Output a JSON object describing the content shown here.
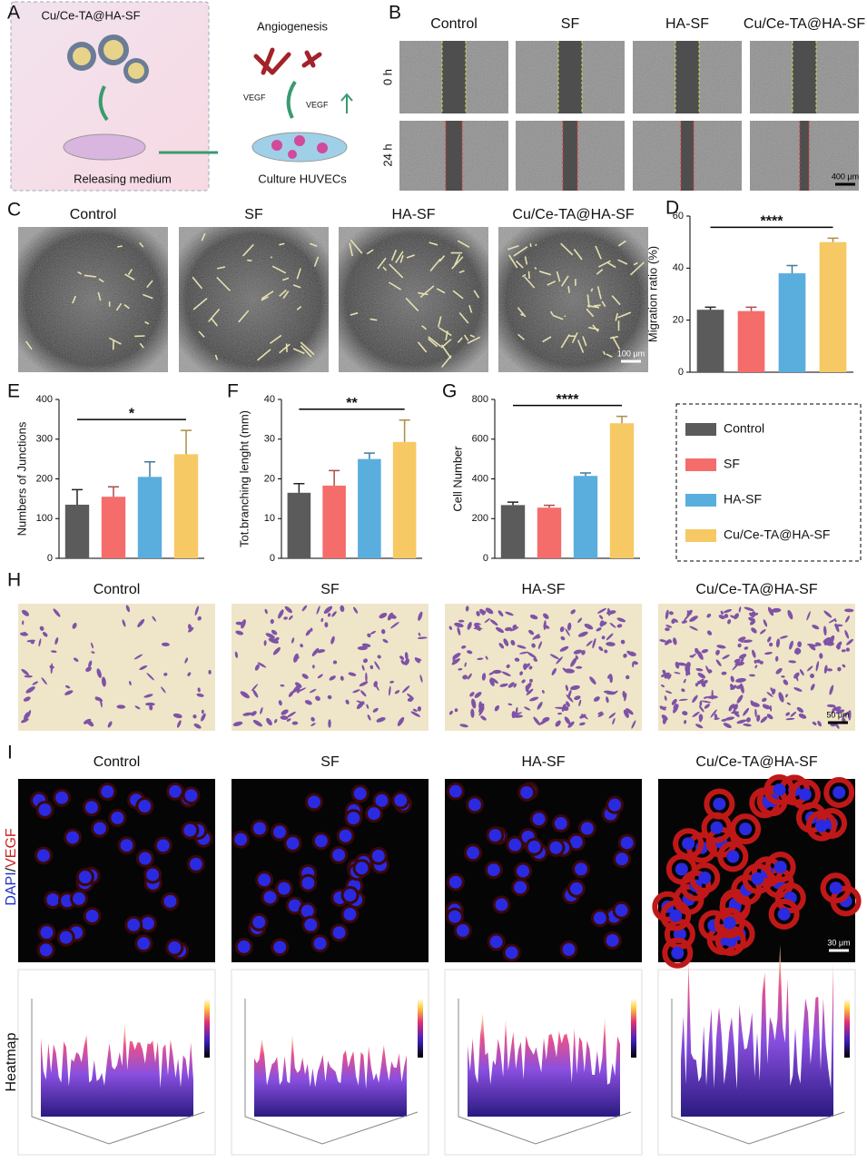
{
  "panel_labels": [
    "A",
    "B",
    "C",
    "D",
    "E",
    "F",
    "G",
    "H",
    "I"
  ],
  "schematic": {
    "material": "Cu/Ce-TA@HA-SF",
    "outcome": "Angiogenesis",
    "factor_labels": [
      "VEGF",
      "VEGF"
    ],
    "step_1": "Releasing medium",
    "step_2": "Culture HUVECs"
  },
  "scratch_assay": {
    "columns": [
      "Control",
      "SF",
      "HA-SF",
      "Cu/Ce-TA@HA-SF"
    ],
    "rows": [
      "0 h",
      "24 h"
    ],
    "scale_bar": "400 μm"
  },
  "tube_formation": {
    "columns": [
      "Control",
      "SF",
      "HA-SF",
      "Cu/Ce-TA@HA-SF"
    ],
    "scale_bar": "100 μm"
  },
  "transwell": {
    "columns": [
      "Control",
      "SF",
      "HA-SF",
      "Cu/Ce-TA@HA-SF"
    ],
    "scale_bar": "50 μm"
  },
  "immunofluorescence": {
    "columns": [
      "Control",
      "SF",
      "HA-SF",
      "Cu/Ce-TA@HA-SF"
    ],
    "row_label": [
      "DAPI",
      "/",
      "VEGF"
    ],
    "heatmap_label": "Heatmap",
    "scale_bar": "30 μm"
  },
  "legend": [
    {
      "name": "Control",
      "color": "#5b5b5b"
    },
    {
      "name": "SF",
      "color": "#f46d6b"
    },
    {
      "name": "HA-SF",
      "color": "#5aaede"
    },
    {
      "name": "Cu/Ce-TA@HA-SF",
      "color": "#f6c964"
    }
  ],
  "chart_data": [
    {
      "type": "bar",
      "ylabel": "Migration ratio (%)",
      "values": [
        24,
        23.5,
        38,
        50
      ],
      "errors": [
        1,
        1.5,
        3,
        1.5
      ],
      "ylim": [
        0,
        60
      ],
      "yticks": [
        0,
        20,
        40,
        60
      ],
      "significance": "****"
    },
    {
      "type": "bar",
      "ylabel": "Numbers of Junctions",
      "values": [
        135,
        155,
        205,
        262
      ],
      "errors": [
        38,
        25,
        38,
        60
      ],
      "ylim": [
        0,
        400
      ],
      "yticks": [
        0,
        100,
        200,
        300,
        400
      ],
      "significance": "*"
    },
    {
      "type": "bar",
      "ylabel": "Tot.branching lenght (mm)",
      "values": [
        16.5,
        18.3,
        25,
        29.3
      ],
      "errors": [
        2.3,
        3.8,
        1.5,
        5.5
      ],
      "ylim": [
        0,
        40
      ],
      "yticks": [
        0,
        10,
        20,
        30,
        40
      ],
      "significance": "**"
    },
    {
      "type": "bar",
      "ylabel": "Cell Number",
      "values": [
        268,
        255,
        415,
        680
      ],
      "errors": [
        15,
        12,
        15,
        35
      ],
      "ylim": [
        0,
        800
      ],
      "yticks": [
        0,
        200,
        400,
        600,
        800
      ],
      "significance": "****"
    }
  ]
}
